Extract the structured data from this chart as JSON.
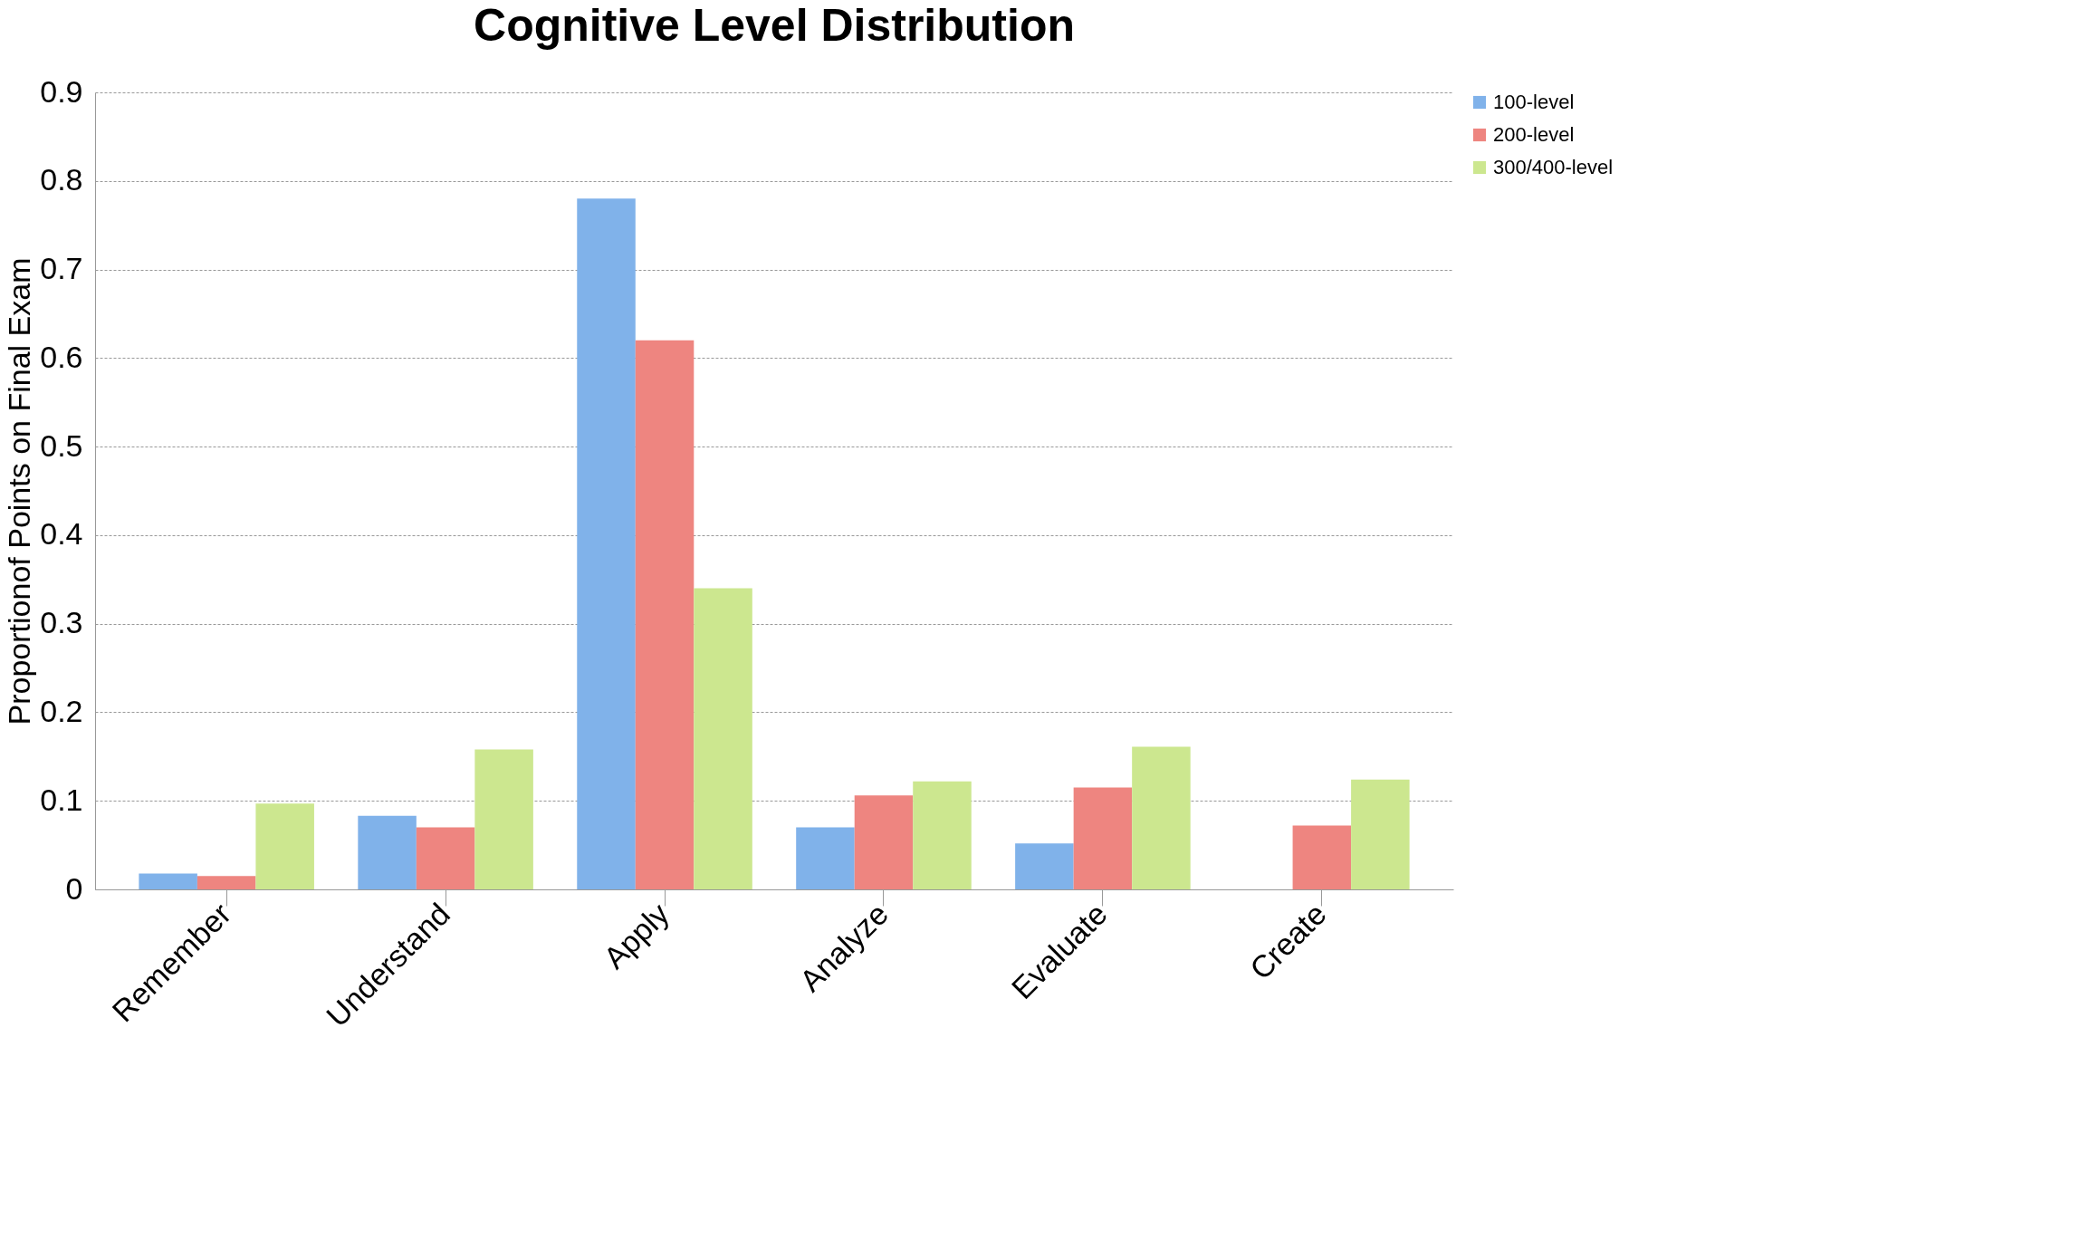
{
  "chart_data": {
    "type": "bar",
    "title": "Cognitive Level Distribution",
    "ylabel": "Proportionof Points on Final Exam",
    "categories": [
      "Remember",
      "Understand",
      "Apply",
      "Analyze",
      "Evaluate",
      "Create"
    ],
    "series": [
      {
        "name": "100-level",
        "color": "#80b2ea",
        "values": [
          0.018,
          0.083,
          0.78,
          0.07,
          0.052,
          0
        ]
      },
      {
        "name": "200-level",
        "color": "#ee8580",
        "values": [
          0.015,
          0.07,
          0.62,
          0.106,
          0.115,
          0.072
        ]
      },
      {
        "name": "300/400-level",
        "color": "#cce78f",
        "values": [
          0.097,
          0.158,
          0.34,
          0.122,
          0.161,
          0.124
        ]
      }
    ],
    "ylim": [
      0,
      0.9
    ],
    "yticks": [
      0,
      0.1,
      0.2,
      0.3,
      0.4,
      0.5,
      0.6,
      0.7,
      0.8,
      0.9
    ],
    "grid": "y",
    "legend": "right"
  }
}
